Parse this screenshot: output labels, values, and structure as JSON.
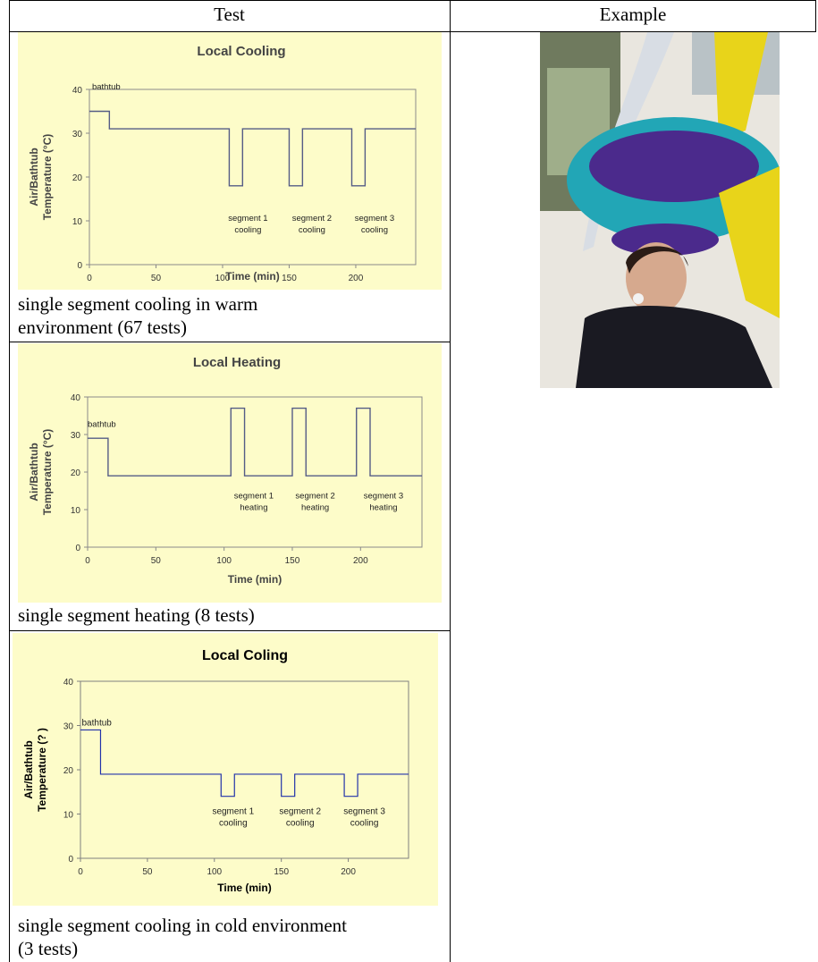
{
  "table": {
    "headers": [
      "Test",
      "Example"
    ]
  },
  "rows": [
    {
      "caption_lines": [
        "single segment cooling in warm",
        "environment (67 tests)"
      ]
    },
    {
      "caption_lines": [
        "single segment heating (8 tests)"
      ]
    },
    {
      "caption_lines": [
        "single segment cooling in cold environment",
        "(3 tests)"
      ]
    }
  ],
  "chart_data": [
    {
      "type": "line",
      "title": "Local Cooling",
      "xlabel": "Time (min)",
      "ylabel_lines": [
        "Air/Bathtub",
        "Temperature (°C)"
      ],
      "xlim": [
        0,
        245
      ],
      "ylim": [
        0,
        40
      ],
      "xticks": [
        0,
        50,
        100,
        150,
        200
      ],
      "yticks": [
        0,
        10,
        20,
        30,
        40
      ],
      "x": [
        0,
        15,
        15,
        105,
        105,
        115,
        115,
        150,
        150,
        160,
        160,
        197,
        197,
        207,
        207,
        245
      ],
      "y": [
        35,
        35,
        31,
        31,
        18,
        18,
        31,
        31,
        18,
        18,
        31,
        31,
        18,
        18,
        31,
        31
      ],
      "annotations": [
        {
          "text": "bathtub",
          "x": 2,
          "y": 40
        },
        {
          "text_lines": [
            "segment 1",
            "cooling"
          ],
          "x": 107,
          "y": 10
        },
        {
          "text_lines": [
            "segment 2",
            "cooling"
          ],
          "x": 155,
          "y": 10
        },
        {
          "text_lines": [
            "segment 3",
            "cooling"
          ],
          "x": 202,
          "y": 10
        }
      ],
      "style": "gray-bold"
    },
    {
      "type": "line",
      "title": "Local Heating",
      "xlabel": "Time (min)",
      "ylabel_lines": [
        "Air/Bathtub",
        "Temperature (°C)"
      ],
      "xlim": [
        0,
        245
      ],
      "ylim": [
        0,
        40
      ],
      "xticks": [
        0,
        50,
        100,
        150,
        200
      ],
      "yticks": [
        0,
        10,
        20,
        30,
        40
      ],
      "x": [
        0,
        15,
        15,
        105,
        105,
        115,
        115,
        150,
        150,
        160,
        160,
        197,
        197,
        207,
        207,
        245
      ],
      "y": [
        29,
        29,
        19,
        19,
        37,
        37,
        19,
        19,
        37,
        37,
        19,
        19,
        37,
        37,
        19,
        19
      ],
      "annotations": [
        {
          "text": "bathtub",
          "x": 0,
          "y": 32
        },
        {
          "text_lines": [
            "segment 1",
            "heating"
          ],
          "x": 110,
          "y": 13
        },
        {
          "text_lines": [
            "segment 2",
            "heating"
          ],
          "x": 155,
          "y": 13
        },
        {
          "text_lines": [
            "segment 3",
            "heating"
          ],
          "x": 205,
          "y": 13
        }
      ],
      "style": "gray-bold"
    },
    {
      "type": "line",
      "title": "Local Coling",
      "xlabel": "Time (min)",
      "ylabel_lines": [
        "Air/Bathtub",
        "Temperature (? )"
      ],
      "xlim": [
        0,
        245
      ],
      "ylim": [
        0,
        40
      ],
      "xticks": [
        0,
        50,
        100,
        150,
        200
      ],
      "yticks": [
        0,
        10,
        20,
        30,
        40
      ],
      "x": [
        0,
        15,
        15,
        105,
        105,
        115,
        115,
        150,
        150,
        160,
        160,
        197,
        197,
        207,
        207,
        245
      ],
      "y": [
        29,
        29,
        19,
        19,
        14,
        14,
        19,
        19,
        14,
        14,
        19,
        19,
        14,
        14,
        19,
        19
      ],
      "annotations": [
        {
          "text": "bathtub",
          "x": 1,
          "y": 30
        },
        {
          "text_lines": [
            "segment 1",
            "cooling"
          ],
          "x": 102,
          "y": 10
        },
        {
          "text_lines": [
            "segment 2",
            "cooling"
          ],
          "x": 152,
          "y": 10
        },
        {
          "text_lines": [
            "segment 3",
            "cooling"
          ],
          "x": 200,
          "y": 10
        }
      ],
      "style": "clean"
    }
  ],
  "example": {
    "colors": {
      "hood_teal": "#22a6b6",
      "hood_purple": "#4b2a8c",
      "hood_yellow": "#e8d41a",
      "hose": "#d8dde4",
      "sweater": "#1a1a22",
      "background": "#e9e6df"
    }
  }
}
